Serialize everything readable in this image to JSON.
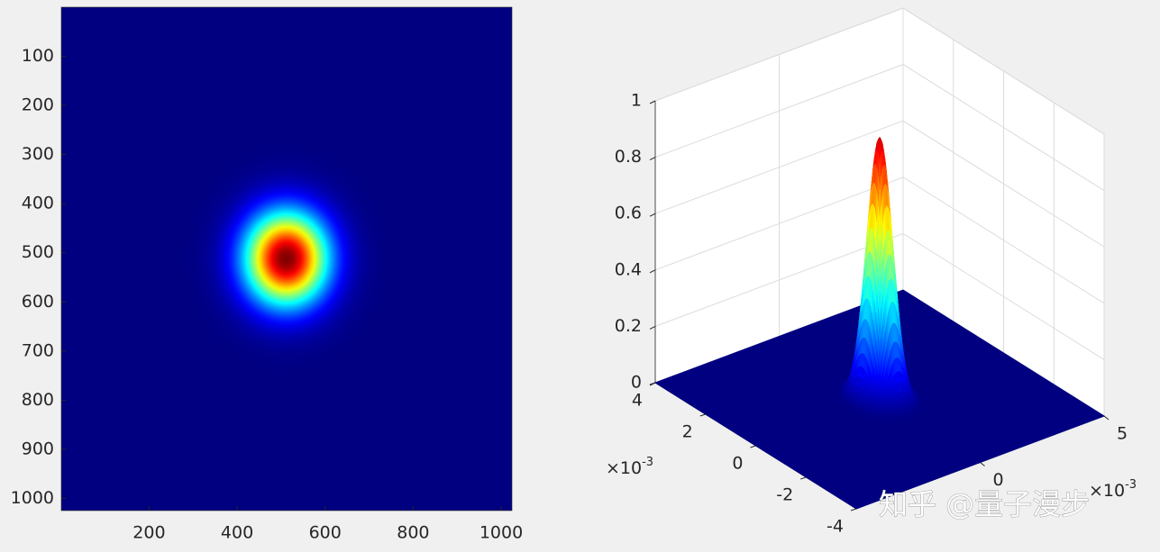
{
  "chart_data": [
    {
      "type": "heatmap",
      "colormap": "jet",
      "clim": [
        0,
        1
      ],
      "xlim": [
        0.5,
        1024.5
      ],
      "ylim": [
        0.5,
        1024.5
      ],
      "y_reversed": true,
      "xticks": [
        200,
        400,
        600,
        800,
        1000
      ],
      "yticks": [
        100,
        200,
        300,
        400,
        500,
        600,
        700,
        800,
        900,
        1000
      ],
      "gaussian": {
        "center_x": 512,
        "center_y": 512,
        "sigma": 65,
        "peak": 1
      }
    },
    {
      "type": "surface3d",
      "colormap": "jet",
      "grid": true,
      "xlim": [
        -0.005,
        0.005
      ],
      "ylim": [
        -0.004,
        0.004
      ],
      "zlim": [
        0,
        1
      ],
      "xticks": [
        0,
        {
          "value": 0.005,
          "label": "5"
        }
      ],
      "yticks": [
        {
          "value": -0.004,
          "label": "-4"
        },
        {
          "value": -0.002,
          "label": "-2"
        },
        0,
        {
          "value": 0.002,
          "label": "2"
        },
        {
          "value": 0.004,
          "label": "4"
        }
      ],
      "zticks": [
        0,
        0.2,
        0.4,
        0.6,
        0.8,
        1
      ],
      "x_multiplier": {
        "base": "×10",
        "exponent": "-3"
      },
      "y_multiplier": {
        "base": "×10",
        "exponent": "-3"
      },
      "gaussian": {
        "center_x": 0,
        "center_y": 0,
        "sigma": 0.00037,
        "peak": 0.93
      }
    }
  ],
  "watermark": "知乎 @量子漫步"
}
